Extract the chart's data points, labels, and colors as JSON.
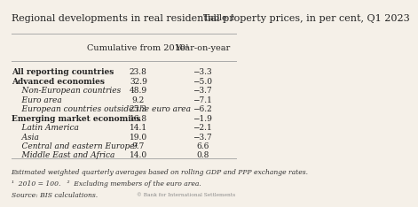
{
  "title": "Regional developments in real residential property prices, in per cent, Q1 2023",
  "table_label": "Table 1",
  "col_headers": [
    "Cumulative from 2010¹",
    "Year-on-year"
  ],
  "rows": [
    {
      "label": "All reporting countries",
      "indent": 0,
      "bold": true,
      "cumulative": "23.8",
      "yoy": "−3.3"
    },
    {
      "label": "Advanced economies",
      "indent": 0,
      "bold": true,
      "cumulative": "32.9",
      "yoy": "−5.0"
    },
    {
      "label": "Non-European countries",
      "indent": 1,
      "bold": false,
      "cumulative": "48.9",
      "yoy": "−3.7"
    },
    {
      "label": "Euro area",
      "indent": 1,
      "bold": false,
      "cumulative": "9.2",
      "yoy": "−7.1"
    },
    {
      "label": "European countries outside the euro area",
      "indent": 1,
      "bold": false,
      "cumulative": "25.3",
      "yoy": "−6.2"
    },
    {
      "label": "Emerging market economies",
      "indent": 0,
      "bold": true,
      "cumulative": "16.8",
      "yoy": "−1.9"
    },
    {
      "label": "Latin America",
      "indent": 1,
      "bold": false,
      "cumulative": "14.1",
      "yoy": "−2.1"
    },
    {
      "label": "Asia",
      "indent": 1,
      "bold": false,
      "cumulative": "19.0",
      "yoy": "−3.7"
    },
    {
      "label": "Central and eastern Europe²",
      "indent": 1,
      "bold": false,
      "cumulative": "9.7",
      "yoy": "6.6"
    },
    {
      "label": "Middle East and Africa",
      "indent": 1,
      "bold": false,
      "cumulative": "14.0",
      "yoy": "0.8"
    }
  ],
  "footnote1": "Estimated weighted quarterly averages based on rolling GDP and PPP exchange rates.",
  "footnote2": "¹  2010 = 100.   ²  Excluding members of the euro area.",
  "source": "Source: BIS calculations.",
  "copyright": "© Bank for International Settlements",
  "bg_color": "#f5f0e8",
  "title_fontsize": 8.0,
  "header_fontsize": 7.0,
  "row_fontsize": 6.5,
  "footnote_fontsize": 5.5
}
